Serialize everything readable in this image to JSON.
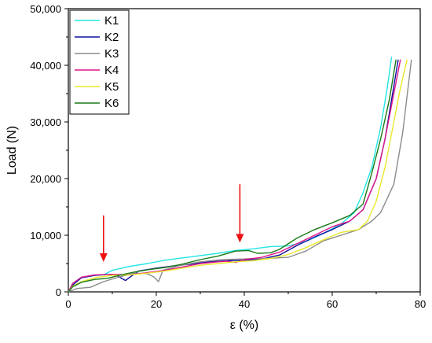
{
  "chart_data": {
    "type": "line",
    "title": "",
    "xlabel": "ε (%)",
    "ylabel": "Load (N)",
    "xlim": [
      0,
      80
    ],
    "ylim": [
      0,
      50000
    ],
    "x_ticks": [
      0,
      20,
      40,
      60,
      80
    ],
    "y_ticks": [
      0,
      10000,
      20000,
      30000,
      40000,
      50000
    ],
    "x_tick_labels": [
      "0",
      "20",
      "40",
      "60",
      "80"
    ],
    "y_tick_labels": [
      "0",
      "10,000",
      "20,000",
      "30,000",
      "40,000",
      "50,000"
    ],
    "grid": false,
    "legend_position": "top-left",
    "series": [
      {
        "name": "K1",
        "color": "#22e5e5",
        "points": [
          [
            0,
            0
          ],
          [
            1,
            1500
          ],
          [
            3,
            2600
          ],
          [
            6,
            2900
          ],
          [
            8,
            3000
          ],
          [
            10,
            3800
          ],
          [
            14,
            4500
          ],
          [
            18,
            5000
          ],
          [
            22,
            5600
          ],
          [
            26,
            6000
          ],
          [
            30,
            6400
          ],
          [
            34,
            6800
          ],
          [
            38,
            7300
          ],
          [
            42,
            7600
          ],
          [
            46,
            8000
          ],
          [
            50,
            8100
          ],
          [
            54,
            8900
          ],
          [
            58,
            10300
          ],
          [
            62,
            12000
          ],
          [
            65,
            14000
          ],
          [
            67,
            17500
          ],
          [
            69,
            22000
          ],
          [
            71,
            29000
          ],
          [
            72.5,
            36000
          ],
          [
            73.5,
            41500
          ]
        ]
      },
      {
        "name": "K2",
        "color": "#1010a0",
        "points": [
          [
            0,
            0
          ],
          [
            1,
            1200
          ],
          [
            3,
            2500
          ],
          [
            6,
            2900
          ],
          [
            9,
            3100
          ],
          [
            11,
            2900
          ],
          [
            13,
            2000
          ],
          [
            14,
            2600
          ],
          [
            16,
            3700
          ],
          [
            20,
            4200
          ],
          [
            24,
            4600
          ],
          [
            28,
            4900
          ],
          [
            32,
            5300
          ],
          [
            36,
            5500
          ],
          [
            40,
            5600
          ],
          [
            44,
            5800
          ],
          [
            48,
            6500
          ],
          [
            52,
            8200
          ],
          [
            56,
            9700
          ],
          [
            60,
            11000
          ],
          [
            64,
            12500
          ],
          [
            67,
            14500
          ],
          [
            70,
            20000
          ],
          [
            72,
            27000
          ],
          [
            73.5,
            34000
          ],
          [
            75,
            41000
          ]
        ]
      },
      {
        "name": "K3",
        "color": "#8c8c8c",
        "points": [
          [
            0,
            0
          ],
          [
            2,
            600
          ],
          [
            5,
            800
          ],
          [
            8,
            1800
          ],
          [
            11,
            2500
          ],
          [
            15,
            3300
          ],
          [
            18,
            3200
          ],
          [
            19.5,
            2600
          ],
          [
            20.5,
            1800
          ],
          [
            21.5,
            3800
          ],
          [
            25,
            4600
          ],
          [
            30,
            5300
          ],
          [
            35,
            5700
          ],
          [
            40,
            5800
          ],
          [
            45,
            5900
          ],
          [
            50,
            6100
          ],
          [
            54,
            7200
          ],
          [
            58,
            9000
          ],
          [
            62,
            10000
          ],
          [
            66,
            11000
          ],
          [
            69,
            12500
          ],
          [
            71,
            14000
          ],
          [
            74,
            19000
          ],
          [
            76,
            28000
          ],
          [
            78,
            41000
          ]
        ]
      },
      {
        "name": "K4",
        "color": "#e0158a",
        "points": [
          [
            0,
            0
          ],
          [
            1,
            1500
          ],
          [
            3,
            2600
          ],
          [
            6,
            3000
          ],
          [
            10,
            3100
          ],
          [
            14,
            3000
          ],
          [
            18,
            3400
          ],
          [
            22,
            3800
          ],
          [
            26,
            4400
          ],
          [
            30,
            5000
          ],
          [
            34,
            5300
          ],
          [
            36,
            5400
          ],
          [
            38,
            5200
          ],
          [
            40,
            5700
          ],
          [
            44,
            6100
          ],
          [
            48,
            7000
          ],
          [
            52,
            8500
          ],
          [
            56,
            10000
          ],
          [
            60,
            11500
          ],
          [
            64,
            12500
          ],
          [
            67,
            14500
          ],
          [
            70,
            20000
          ],
          [
            72,
            27000
          ],
          [
            74,
            35000
          ],
          [
            75.5,
            41000
          ]
        ]
      },
      {
        "name": "K5",
        "color": "#e8e82a",
        "points": [
          [
            0,
            0
          ],
          [
            1,
            1000
          ],
          [
            3,
            1800
          ],
          [
            6,
            2500
          ],
          [
            10,
            2900
          ],
          [
            14,
            3000
          ],
          [
            18,
            3300
          ],
          [
            22,
            3700
          ],
          [
            26,
            4200
          ],
          [
            30,
            4700
          ],
          [
            34,
            5000
          ],
          [
            38,
            5300
          ],
          [
            42,
            5500
          ],
          [
            46,
            5900
          ],
          [
            50,
            6600
          ],
          [
            54,
            7800
          ],
          [
            58,
            9200
          ],
          [
            62,
            10500
          ],
          [
            66,
            11000
          ],
          [
            68,
            12500
          ],
          [
            70,
            16000
          ],
          [
            72,
            22000
          ],
          [
            74,
            30000
          ],
          [
            75.5,
            36000
          ],
          [
            77,
            41000
          ]
        ]
      },
      {
        "name": "K6",
        "color": "#1a7a1a",
        "points": [
          [
            0,
            0
          ],
          [
            1,
            900
          ],
          [
            3,
            1700
          ],
          [
            6,
            2200
          ],
          [
            9,
            2400
          ],
          [
            12,
            3000
          ],
          [
            15,
            3500
          ],
          [
            18,
            3900
          ],
          [
            22,
            4300
          ],
          [
            26,
            4900
          ],
          [
            30,
            5700
          ],
          [
            34,
            6300
          ],
          [
            38,
            7200
          ],
          [
            41,
            7300
          ],
          [
            43,
            6800
          ],
          [
            46,
            6900
          ],
          [
            48,
            7500
          ],
          [
            52,
            9500
          ],
          [
            56,
            11000
          ],
          [
            60,
            12200
          ],
          [
            64,
            13500
          ],
          [
            67,
            15500
          ],
          [
            69,
            21000
          ],
          [
            71,
            27000
          ],
          [
            73,
            34000
          ],
          [
            74.5,
            41000
          ]
        ]
      }
    ],
    "annotations": [
      {
        "type": "arrow",
        "color": "#ee1111",
        "x": 8,
        "y_from": 13500,
        "y_to": 5300
      },
      {
        "type": "arrow",
        "color": "#ee1111",
        "x": 39,
        "y_from": 19000,
        "y_to": 8700
      }
    ]
  }
}
